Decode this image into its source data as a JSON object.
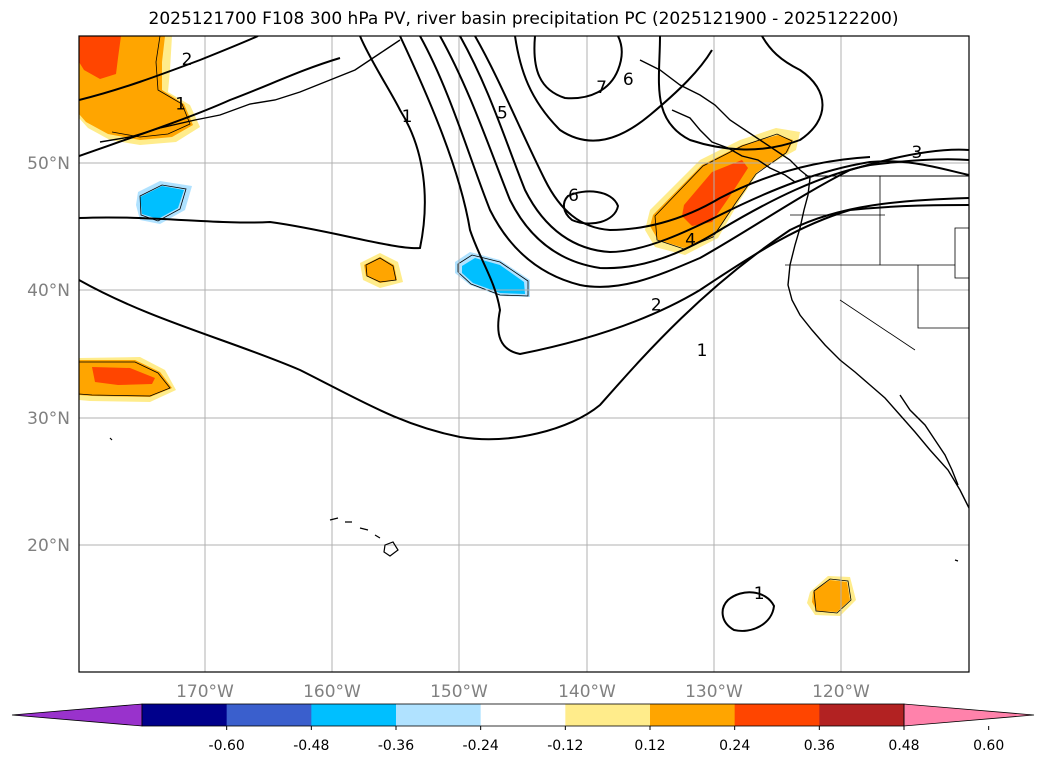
{
  "title": "2025121700 F108 300 hPa PV, river basin precipitation PC (2025121900 - 2025122200)",
  "colors": {
    "background": "#ffffff",
    "grid": "#b0b0b0",
    "axis_label": "#808080",
    "contour": "#000000",
    "coast": "#000000"
  },
  "chart_data": {
    "type": "map",
    "title": "2025121700 F108 300 hPa PV, river basin precipitation PC (2025121900 - 2025122200)",
    "lon_range": [
      -180,
      -110
    ],
    "lat_range": [
      10,
      60
    ],
    "lat_ticks": [
      {
        "value": 20,
        "label": "20°N"
      },
      {
        "value": 30,
        "label": "30°N"
      },
      {
        "value": 40,
        "label": "40°N"
      },
      {
        "value": 50,
        "label": "50°N"
      }
    ],
    "lon_ticks": [
      {
        "value": -170,
        "label": "170°W"
      },
      {
        "value": -160,
        "label": "160°W"
      },
      {
        "value": -150,
        "label": "150°W"
      },
      {
        "value": -140,
        "label": "140°W"
      },
      {
        "value": -130,
        "label": "130°W"
      },
      {
        "value": -120,
        "label": "120°W"
      }
    ],
    "contour_labels": [
      {
        "text": "2",
        "lon": -171.5,
        "lat": 58.2
      },
      {
        "text": "1",
        "lon": -172.0,
        "lat": 54.7
      },
      {
        "text": "1",
        "lon": -154.2,
        "lat": 53.7
      },
      {
        "text": "5",
        "lon": -146.7,
        "lat": 54.0
      },
      {
        "text": "7",
        "lon": -138.9,
        "lat": 56.0
      },
      {
        "text": "6",
        "lon": -136.8,
        "lat": 56.6
      },
      {
        "text": "6",
        "lon": -141.1,
        "lat": 47.5
      },
      {
        "text": "4",
        "lon": -131.9,
        "lat": 44.0
      },
      {
        "text": "2",
        "lon": -134.6,
        "lat": 38.9
      },
      {
        "text": "1",
        "lon": -131.0,
        "lat": 35.3
      },
      {
        "text": "3",
        "lon": -114.1,
        "lat": 50.9
      },
      {
        "text": "1",
        "lon": -126.5,
        "lat": 16.2
      }
    ],
    "colorbar": {
      "ticks": [
        "-0.60",
        "-0.48",
        "-0.36",
        "-0.24",
        "-0.12",
        "0.12",
        "0.24",
        "0.36",
        "0.48",
        "0.60"
      ],
      "colors": [
        "#9932cc",
        "#00008b",
        "#3a5fcd",
        "#00bfff",
        "#b0e2ff",
        "#ffffff",
        "#ffec8b",
        "#ffa500",
        "#ff4500",
        "#b22222",
        "#ff82ab"
      ]
    }
  }
}
